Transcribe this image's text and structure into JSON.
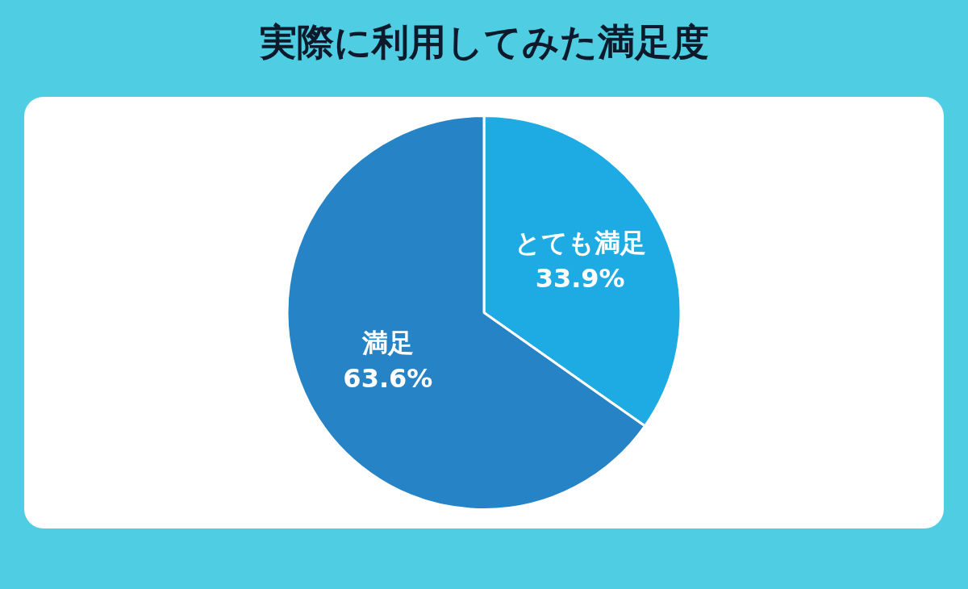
{
  "chart_data": {
    "type": "pie",
    "title": "実際に利用してみた満足度",
    "categories": [
      "とても満足",
      "満足"
    ],
    "values": [
      33.9,
      63.6
    ],
    "colors": [
      "#1eaae2",
      "#2583c6"
    ],
    "value_labels": [
      "33.9%",
      "63.6%"
    ],
    "legend": false
  }
}
